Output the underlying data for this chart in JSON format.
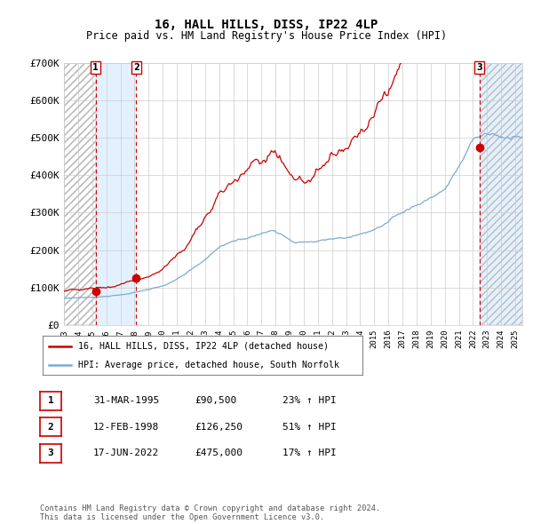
{
  "title": "16, HALL HILLS, DISS, IP22 4LP",
  "subtitle": "Price paid vs. HM Land Registry's House Price Index (HPI)",
  "footer": "Contains HM Land Registry data © Crown copyright and database right 2024.\nThis data is licensed under the Open Government Licence v3.0.",
  "legend_line1": "16, HALL HILLS, DISS, IP22 4LP (detached house)",
  "legend_line2": "HPI: Average price, detached house, South Norfolk",
  "transactions": [
    {
      "num": 1,
      "date": "31-MAR-1995",
      "price": 90500,
      "hpi_pct": "23%",
      "x_year": 1995.25
    },
    {
      "num": 2,
      "date": "12-FEB-1998",
      "price": 126250,
      "hpi_pct": "51%",
      "x_year": 1998.12
    },
    {
      "num": 3,
      "date": "17-JUN-2022",
      "price": 475000,
      "hpi_pct": "17%",
      "x_year": 2022.46
    }
  ],
  "hpi_color": "#7aacd6",
  "price_color": "#cc0000",
  "marker_color": "#cc0000",
  "shade_color": "#ddeeff",
  "ylim": [
    0,
    700000
  ],
  "ytick_labels": [
    "£0",
    "£100K",
    "£200K",
    "£300K",
    "£400K",
    "£500K",
    "£600K",
    "£700K"
  ],
  "ytick_values": [
    0,
    100000,
    200000,
    300000,
    400000,
    500000,
    600000,
    700000
  ],
  "xmin": 1993.0,
  "xmax": 2025.5,
  "hpi_seed": 42,
  "price_seed": 99
}
